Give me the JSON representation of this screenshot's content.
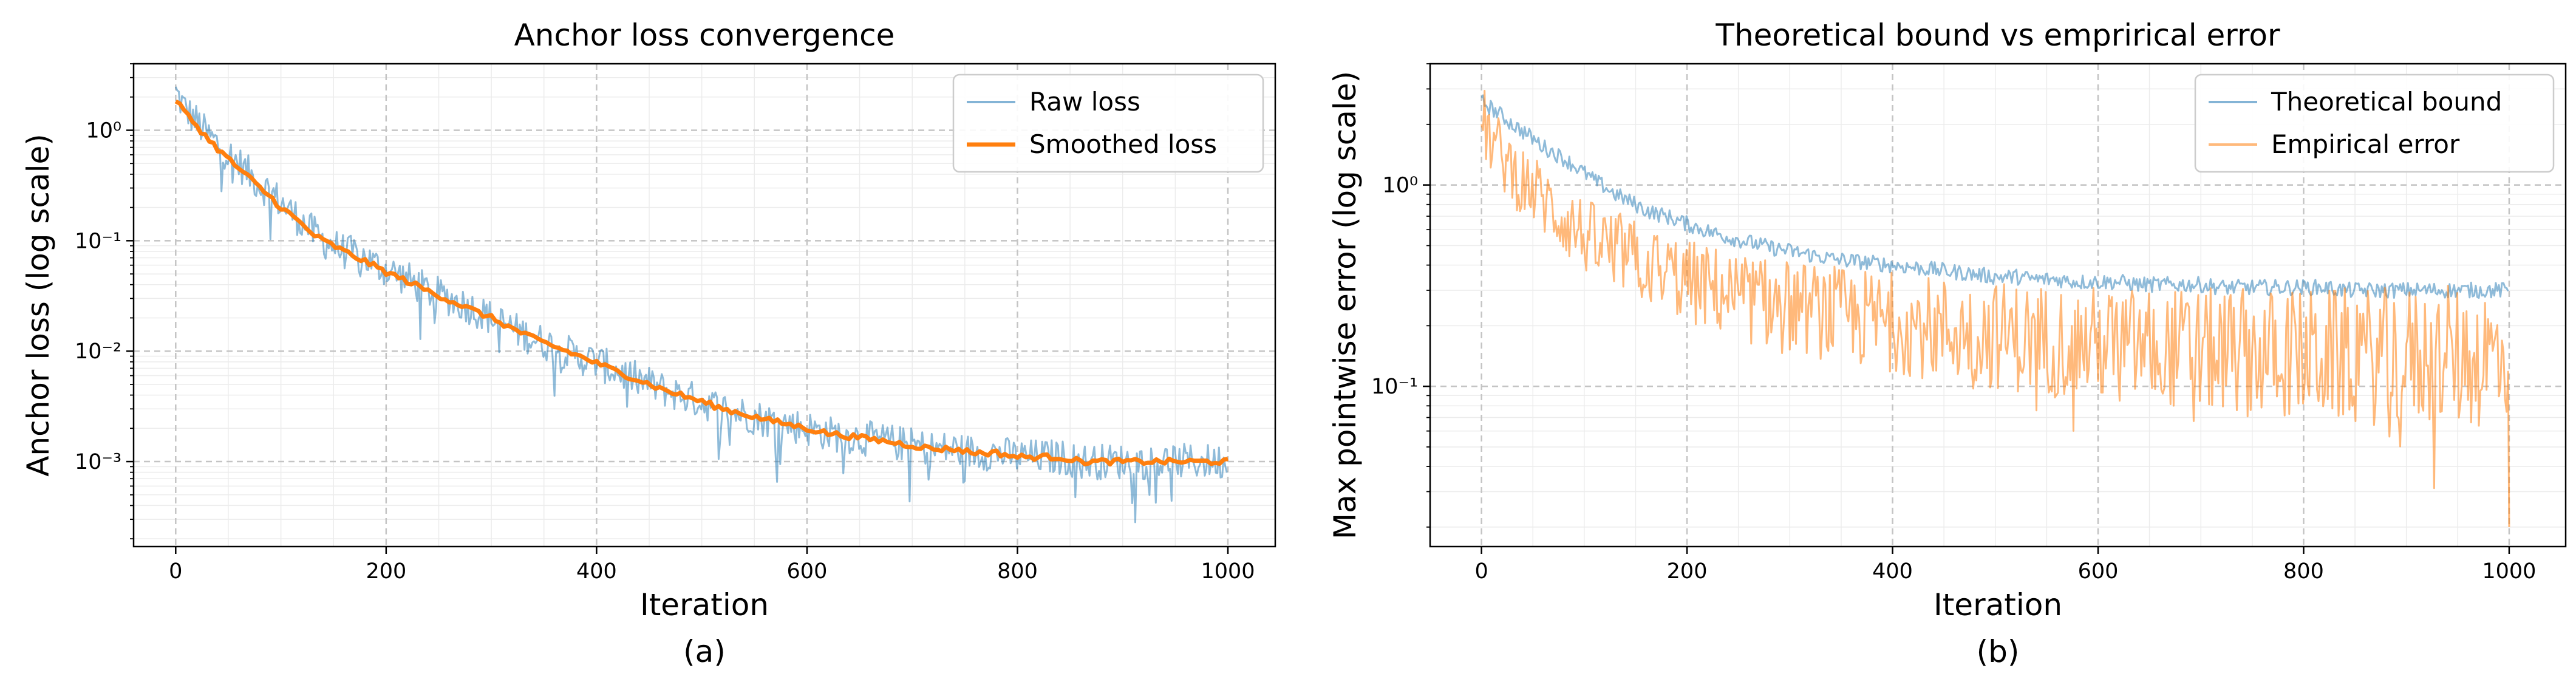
{
  "chart_data": [
    {
      "type": "line",
      "title": "Anchor loss convergence",
      "xlabel": "Iteration",
      "ylabel": "Anchor loss (log scale)",
      "panel_label": "(a)",
      "xlim": [
        -40,
        1045
      ],
      "ylim": [
        0.00017,
        4.0
      ],
      "yscale": "log",
      "grid": true,
      "legend_position": "top-right",
      "xticks": [
        "0",
        "200",
        "400",
        "600",
        "800",
        "1000"
      ],
      "yticks": [
        "10^-3",
        "10^-2",
        "10^-1",
        "10^0"
      ],
      "series": [
        {
          "name": "Raw loss",
          "color": "#1f77b4",
          "x": [
            0,
            10,
            20,
            30,
            40,
            50,
            60,
            70,
            80,
            90,
            100,
            110,
            120,
            130,
            140,
            150,
            160,
            170,
            180,
            190,
            200,
            220,
            240,
            260,
            280,
            300,
            320,
            340,
            360,
            380,
            400,
            420,
            440,
            460,
            480,
            500,
            520,
            540,
            560,
            580,
            600,
            620,
            640,
            660,
            680,
            700,
            720,
            740,
            760,
            780,
            800,
            820,
            840,
            860,
            880,
            900,
            920,
            940,
            960,
            980,
            1000
          ],
          "values": [
            2.2,
            1.5,
            1.2,
            0.9,
            0.75,
            0.6,
            0.5,
            0.4,
            0.32,
            0.28,
            0.22,
            0.18,
            0.15,
            0.12,
            0.1,
            0.09,
            0.08,
            0.075,
            0.07,
            0.06,
            0.055,
            0.045,
            0.035,
            0.03,
            0.025,
            0.02,
            0.016,
            0.013,
            0.011,
            0.009,
            0.008,
            0.0065,
            0.0055,
            0.0046,
            0.004,
            0.0035,
            0.003,
            0.0027,
            0.0024,
            0.0022,
            0.002,
            0.0018,
            0.0017,
            0.0016,
            0.0015,
            0.0014,
            0.0013,
            0.0013,
            0.0012,
            0.0012,
            0.0011,
            0.0011,
            0.0011,
            0.001,
            0.001,
            0.001,
            0.001,
            0.001,
            0.001,
            0.001,
            0.001
          ]
        },
        {
          "name": "Smoothed loss",
          "color": "#ff7f0e",
          "x": [
            0,
            10,
            20,
            30,
            40,
            50,
            60,
            70,
            80,
            90,
            100,
            110,
            120,
            130,
            140,
            150,
            160,
            170,
            180,
            190,
            200,
            220,
            240,
            260,
            280,
            300,
            320,
            340,
            360,
            380,
            400,
            420,
            440,
            460,
            480,
            500,
            520,
            540,
            560,
            580,
            600,
            620,
            640,
            660,
            680,
            700,
            720,
            740,
            760,
            780,
            800,
            820,
            840,
            860,
            880,
            900,
            920,
            940,
            960,
            980,
            1000
          ],
          "values": [
            1.9,
            1.4,
            1.1,
            0.85,
            0.68,
            0.55,
            0.45,
            0.37,
            0.3,
            0.25,
            0.2,
            0.17,
            0.14,
            0.115,
            0.1,
            0.09,
            0.08,
            0.072,
            0.065,
            0.058,
            0.052,
            0.043,
            0.035,
            0.029,
            0.024,
            0.02,
            0.016,
            0.013,
            0.011,
            0.0093,
            0.0078,
            0.0065,
            0.0055,
            0.0046,
            0.004,
            0.0035,
            0.003,
            0.0027,
            0.0024,
            0.0022,
            0.002,
            0.0018,
            0.0017,
            0.0016,
            0.0015,
            0.0014,
            0.0013,
            0.0013,
            0.0012,
            0.0012,
            0.0011,
            0.0011,
            0.0011,
            0.001,
            0.001,
            0.001,
            0.001,
            0.001,
            0.001,
            0.001,
            0.001
          ]
        }
      ]
    },
    {
      "type": "line",
      "title": "Theoretical bound vs emprirical error",
      "xlabel": "Iteration",
      "ylabel": "Max pointwise error (log scale)",
      "panel_label": "(b)",
      "xlim": [
        -50,
        1055
      ],
      "ylim": [
        0.016,
        4.0
      ],
      "yscale": "log",
      "grid": true,
      "legend_position": "top-right",
      "xticks": [
        "0",
        "200",
        "400",
        "600",
        "800",
        "1000"
      ],
      "yticks": [
        "10^-1",
        "10^0"
      ],
      "series": [
        {
          "name": "Theoretical bound",
          "color": "#1f77b4",
          "x": [
            0,
            10,
            20,
            30,
            40,
            50,
            60,
            70,
            80,
            90,
            100,
            110,
            120,
            130,
            140,
            150,
            160,
            170,
            180,
            190,
            200,
            220,
            240,
            260,
            280,
            300,
            320,
            340,
            360,
            380,
            400,
            420,
            440,
            460,
            480,
            500,
            520,
            540,
            560,
            580,
            600,
            620,
            640,
            660,
            680,
            700,
            720,
            740,
            760,
            780,
            800,
            820,
            840,
            860,
            880,
            900,
            920,
            940,
            960,
            980,
            1000
          ],
          "values": [
            2.6,
            2.4,
            2.2,
            2.0,
            1.85,
            1.7,
            1.55,
            1.45,
            1.35,
            1.25,
            1.15,
            1.05,
            0.98,
            0.9,
            0.85,
            0.8,
            0.75,
            0.72,
            0.7,
            0.67,
            0.64,
            0.59,
            0.55,
            0.52,
            0.49,
            0.47,
            0.45,
            0.43,
            0.42,
            0.41,
            0.4,
            0.39,
            0.38,
            0.37,
            0.36,
            0.35,
            0.35,
            0.34,
            0.34,
            0.33,
            0.33,
            0.33,
            0.32,
            0.32,
            0.32,
            0.32,
            0.31,
            0.31,
            0.31,
            0.31,
            0.31,
            0.31,
            0.3,
            0.3,
            0.3,
            0.3,
            0.3,
            0.3,
            0.3,
            0.3,
            0.3
          ]
        },
        {
          "name": "Empirical error",
          "color": "#ff7f0e",
          "x": [
            0,
            10,
            20,
            30,
            40,
            50,
            60,
            70,
            80,
            90,
            100,
            110,
            120,
            130,
            140,
            150,
            160,
            170,
            180,
            190,
            200,
            220,
            240,
            260,
            280,
            300,
            320,
            340,
            360,
            380,
            400,
            420,
            440,
            460,
            480,
            500,
            520,
            540,
            560,
            580,
            600,
            620,
            640,
            660,
            680,
            700,
            720,
            740,
            760,
            780,
            800,
            820,
            840,
            860,
            880,
            900,
            920,
            940,
            960,
            980,
            1000
          ],
          "values": [
            2.2,
            1.6,
            1.4,
            1.2,
            1.05,
            0.95,
            0.85,
            0.75,
            0.68,
            0.62,
            0.56,
            0.52,
            0.5,
            0.48,
            0.45,
            0.42,
            0.4,
            0.38,
            0.37,
            0.35,
            0.33,
            0.31,
            0.29,
            0.27,
            0.26,
            0.25,
            0.24,
            0.23,
            0.22,
            0.215,
            0.21,
            0.2,
            0.195,
            0.19,
            0.185,
            0.18,
            0.175,
            0.172,
            0.168,
            0.165,
            0.162,
            0.16,
            0.158,
            0.155,
            0.153,
            0.15,
            0.15,
            0.148,
            0.146,
            0.145,
            0.144,
            0.143,
            0.142,
            0.141,
            0.14,
            0.14,
            0.14,
            0.14,
            0.14,
            0.14,
            0.14
          ]
        }
      ]
    }
  ]
}
